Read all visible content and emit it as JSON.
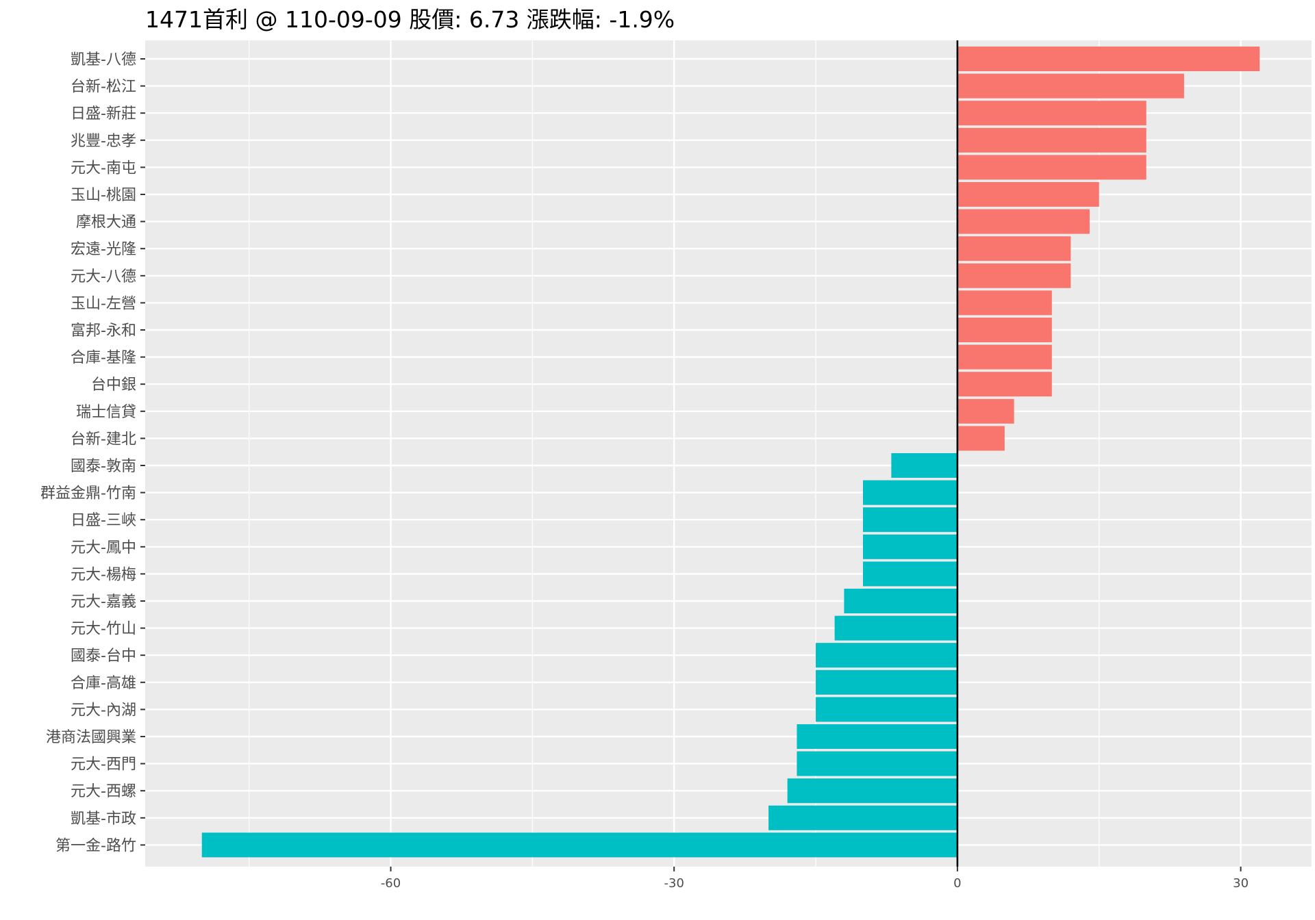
{
  "chart_data": {
    "type": "bar",
    "orientation": "horizontal",
    "title": "1471首利 @ 110-09-09 股價:  6.73 漲跌幅:  -1.9%",
    "xlabel": "",
    "ylabel": "",
    "xlim": [
      -86,
      37.5
    ],
    "x_ticks": [
      -60,
      -30,
      0,
      30
    ],
    "x_tick_labels": [
      "-60",
      "-30",
      "0",
      "30"
    ],
    "grid": true,
    "legend": "none",
    "colors": {
      "positive": "#F8766D",
      "negative": "#00BFC4",
      "panel": "#EBEBEB",
      "grid": "#FFFFFF",
      "zero_line": "#000000"
    },
    "categories": [
      "凱基-八德",
      "台新-松江",
      "日盛-新莊",
      "兆豐-忠孝",
      "元大-南屯",
      "玉山-桃園",
      "摩根大通",
      "宏遠-光隆",
      "元大-八德",
      "玉山-左營",
      "富邦-永和",
      "合庫-基隆",
      "台中銀",
      "瑞士信貸",
      "台新-建北",
      "國泰-敦南",
      "群益金鼎-竹南",
      "日盛-三峽",
      "元大-鳳中",
      "元大-楊梅",
      "元大-嘉義",
      "元大-竹山",
      "國泰-台中",
      "合庫-高雄",
      "元大-內湖",
      "港商法國興業",
      "元大-西門",
      "元大-西螺",
      "凱基-市政",
      "第一金-路竹"
    ],
    "values": [
      32,
      24,
      20,
      20,
      20,
      15,
      14,
      12,
      12,
      10,
      10,
      10,
      10,
      6,
      5,
      -7,
      -10,
      -10,
      -10,
      -10,
      -12,
      -13,
      -15,
      -15,
      -15,
      -17,
      -17,
      -18,
      -20,
      -80
    ]
  }
}
